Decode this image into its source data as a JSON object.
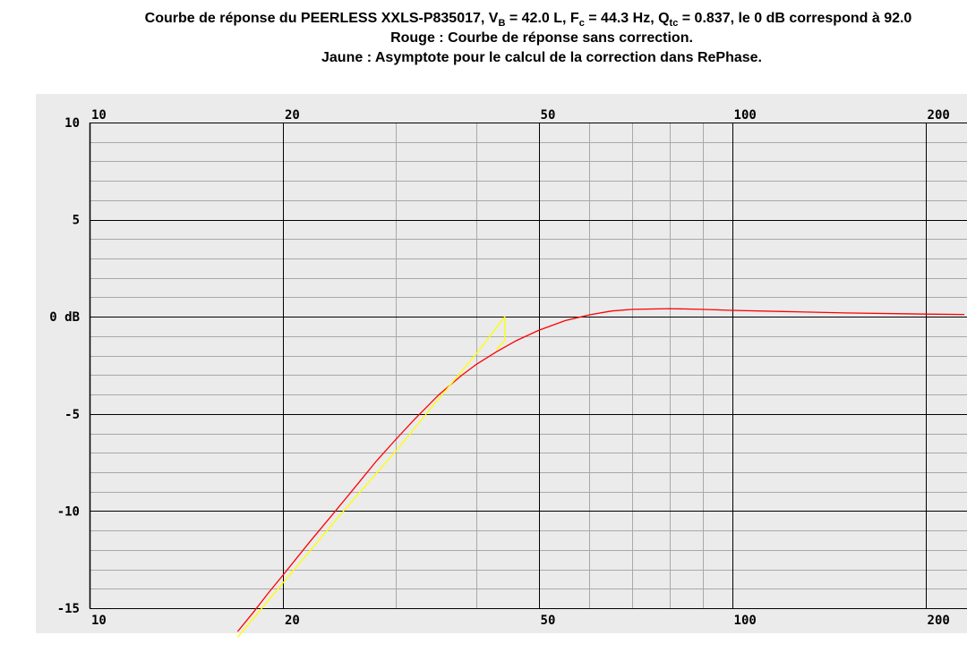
{
  "title": {
    "line1": {
      "prefix": "Courbe de réponse du PEERLESS XXLS-P835017, V",
      "vb_sub": "B",
      "vb_val": " = 42.0 L, F",
      "fc_sub": "c",
      "fc_val": " = 44.3 Hz, Q",
      "qtc_sub": "tc",
      "suffix": " = 0.837, le 0 dB correspond à 92.0"
    },
    "line2": "Rouge : Courbe de réponse sans correction.",
    "line3": "Jaune : Asymptote pour le calcul de la correction dans RePhase."
  },
  "chart_data": {
    "type": "line",
    "x_scale": "log",
    "xlim": [
      10,
      230
    ],
    "ylim": [
      -15,
      10
    ],
    "x_tick_labels": [
      "10",
      "20",
      "50",
      "100",
      "200"
    ],
    "y_tick_labels": [
      {
        "value": 10,
        "label": "10"
      },
      {
        "value": 5,
        "label": "5"
      },
      {
        "value": 0,
        "label": "0 dB"
      },
      {
        "value": -5,
        "label": "-5"
      },
      {
        "value": -10,
        "label": "-10"
      },
      {
        "value": -15,
        "label": "-15"
      }
    ],
    "colors": {
      "background": "#ebebeb",
      "minor_grid": "#a8a8a8",
      "major_grid": "#000000",
      "response": "#ff0000",
      "asymptote": "#ffff00"
    },
    "series": [
      {
        "id": "response",
        "color": "#ff0000",
        "points": [
          [
            17,
            -16.2
          ],
          [
            18,
            -15.2
          ],
          [
            19,
            -14.2
          ],
          [
            20,
            -13.3
          ],
          [
            22,
            -11.6
          ],
          [
            24,
            -10.1
          ],
          [
            26,
            -8.7
          ],
          [
            28,
            -7.4
          ],
          [
            30,
            -6.3
          ],
          [
            32,
            -5.3
          ],
          [
            35,
            -4.0
          ],
          [
            38,
            -3.0
          ],
          [
            40,
            -2.45
          ],
          [
            43,
            -1.8
          ],
          [
            46,
            -1.25
          ],
          [
            50,
            -0.7
          ],
          [
            55,
            -0.2
          ],
          [
            60,
            0.1
          ],
          [
            65,
            0.3
          ],
          [
            70,
            0.38
          ],
          [
            80,
            0.42
          ],
          [
            90,
            0.38
          ],
          [
            100,
            0.33
          ],
          [
            120,
            0.27
          ],
          [
            150,
            0.2
          ],
          [
            200,
            0.14
          ],
          [
            230,
            0.12
          ]
        ]
      },
      {
        "id": "asymptote",
        "color": "#ffff00",
        "points": [
          [
            17,
            -16.5
          ],
          [
            20,
            -13.7
          ],
          [
            25,
            -9.9
          ],
          [
            30,
            -6.9
          ],
          [
            35,
            -4.2
          ],
          [
            40,
            -1.9
          ],
          [
            44.3,
            0.0
          ],
          [
            44.3,
            -1.2
          ],
          [
            43,
            -1.7
          ]
        ]
      }
    ]
  }
}
